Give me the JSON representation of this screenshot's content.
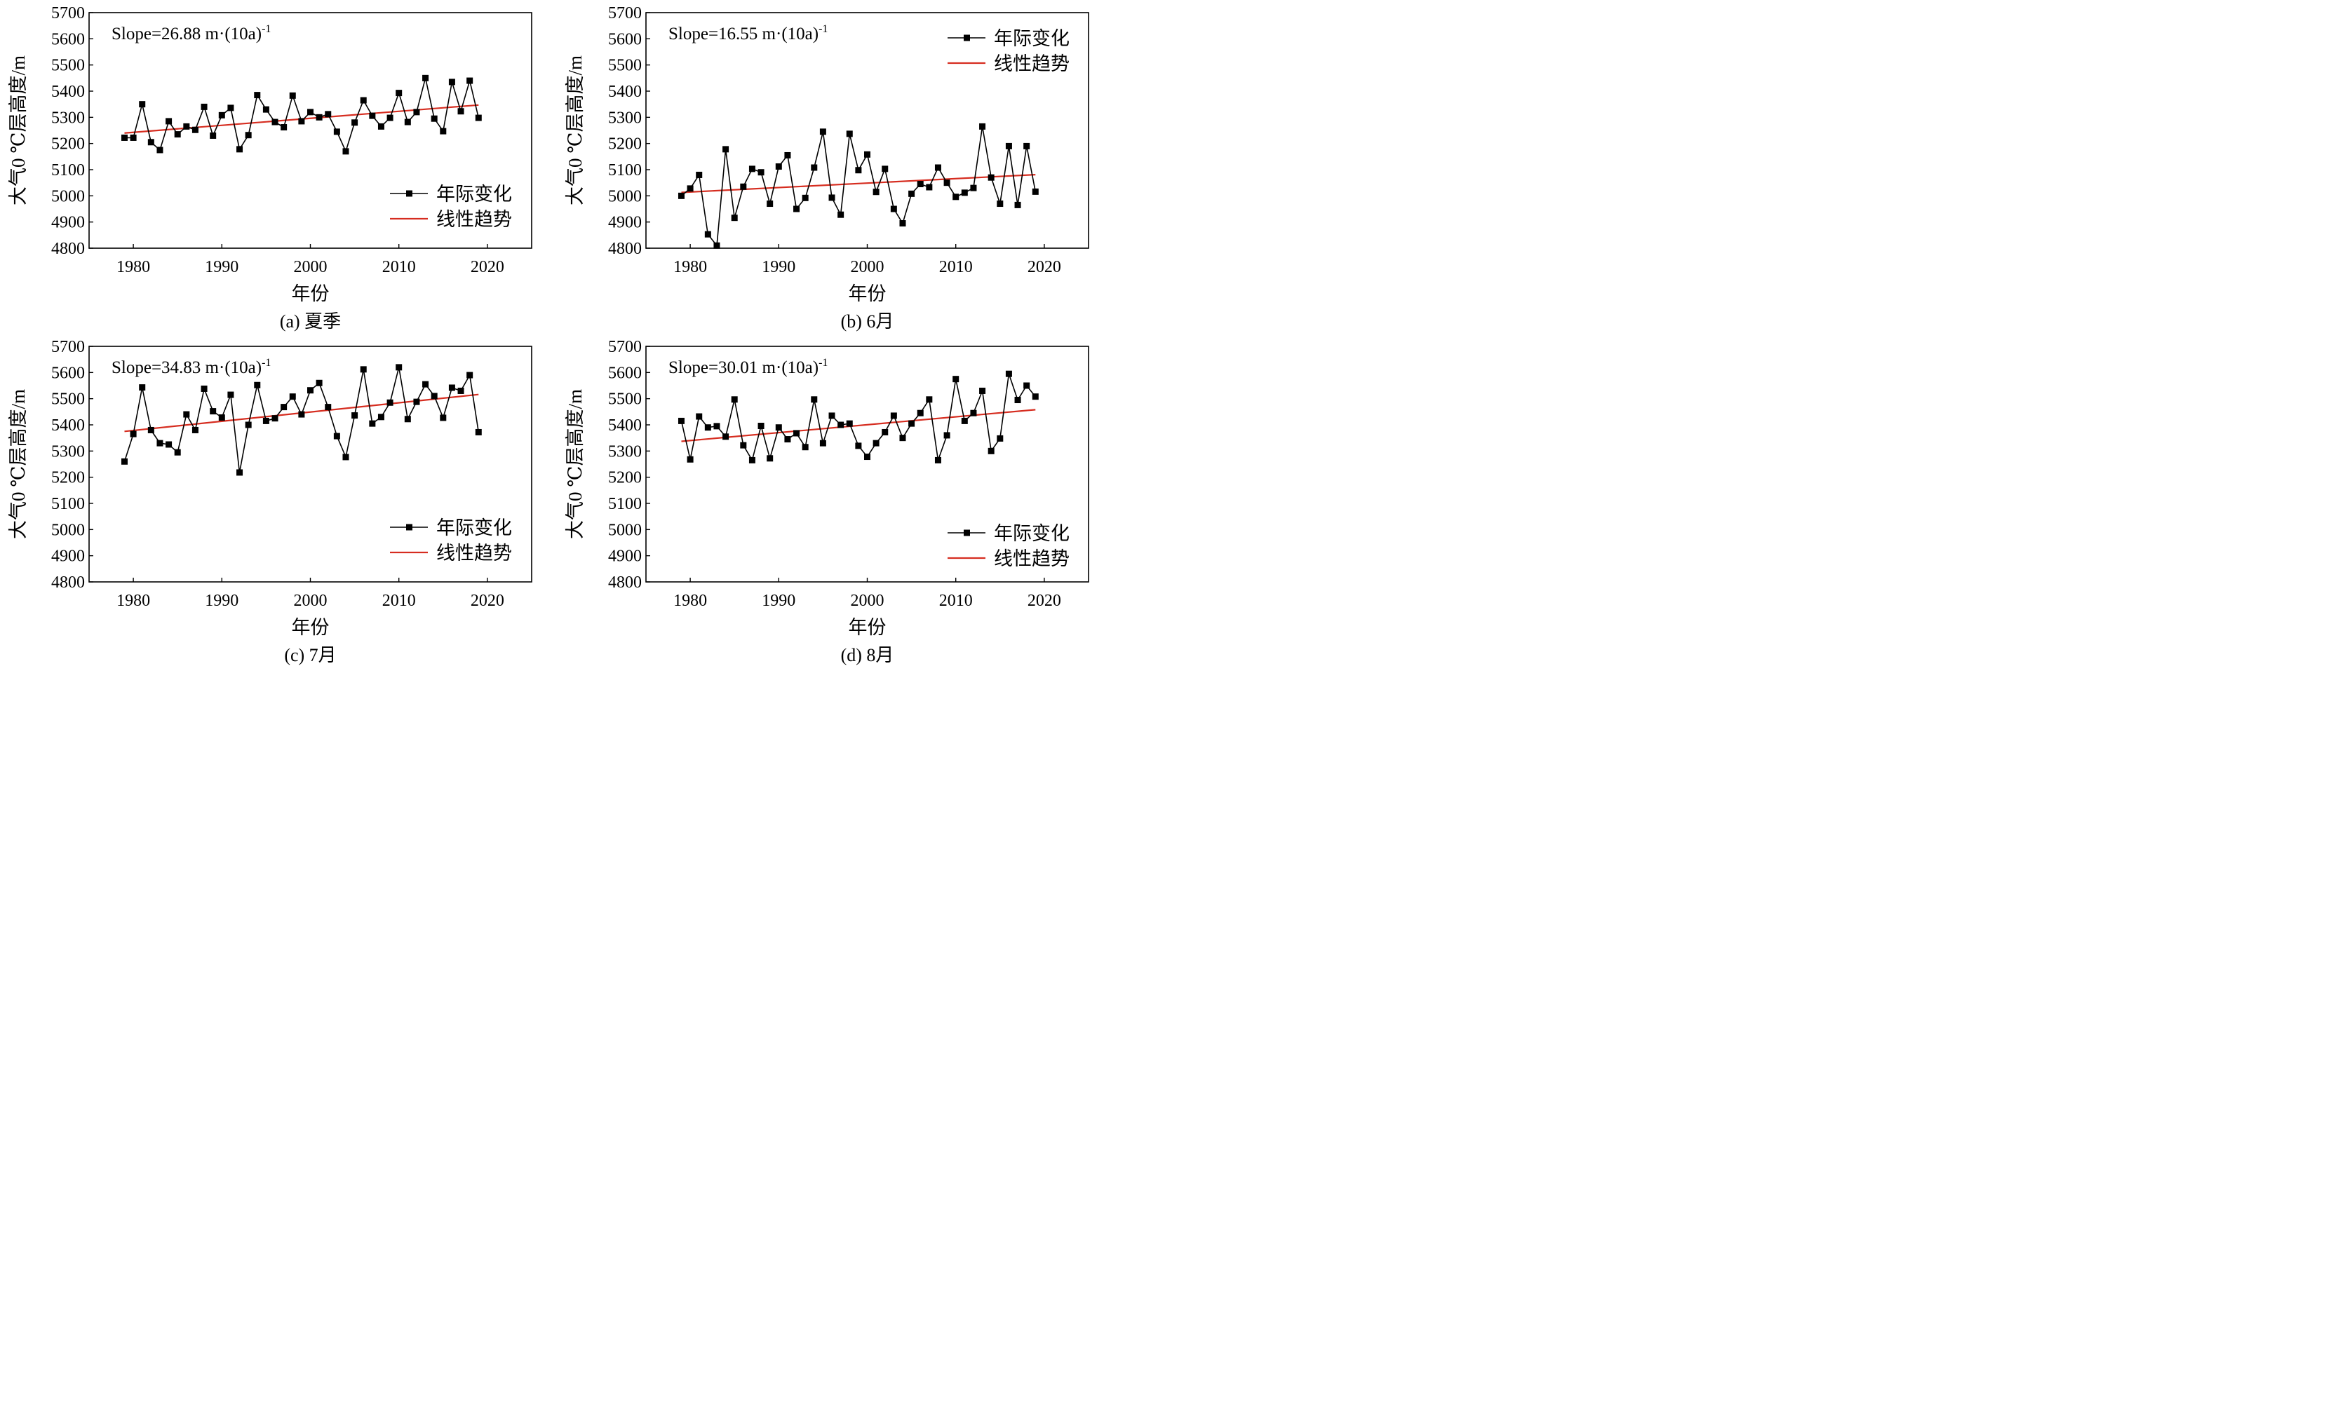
{
  "chart_data": [
    {
      "type": "line",
      "caption": "(a) 夏季",
      "xlabel": "年份",
      "ylabel": "大气0 ℃层高度/m",
      "xlim": [
        1975,
        2025
      ],
      "ylim": [
        4800,
        5700
      ],
      "xticks": [
        1980,
        1990,
        2000,
        2010,
        2020
      ],
      "yticks": [
        4800,
        4900,
        5000,
        5100,
        5200,
        5300,
        5400,
        5500,
        5600,
        5700
      ],
      "annotation": {
        "main": "Slope=26.88 m·(10a)",
        "sup": "-1"
      },
      "legend": {
        "position": "bottom-right",
        "entries": [
          "年际变化",
          "线性趋势"
        ]
      },
      "series": [
        {
          "name": "年际变化",
          "color": "#000000",
          "marker": "square",
          "x": [
            1979,
            1980,
            1981,
            1982,
            1983,
            1984,
            1985,
            1986,
            1987,
            1988,
            1989,
            1990,
            1991,
            1992,
            1993,
            1994,
            1995,
            1996,
            1997,
            1998,
            1999,
            2000,
            2001,
            2002,
            2003,
            2004,
            2005,
            2006,
            2007,
            2008,
            2009,
            2010,
            2011,
            2012,
            2013,
            2014,
            2015,
            2016,
            2017,
            2018,
            2019
          ],
          "y": [
            5222,
            5222,
            5350,
            5205,
            5175,
            5285,
            5235,
            5265,
            5252,
            5340,
            5230,
            5308,
            5336,
            5178,
            5232,
            5385,
            5330,
            5282,
            5262,
            5383,
            5285,
            5320,
            5300,
            5312,
            5245,
            5170,
            5280,
            5365,
            5306,
            5265,
            5298,
            5393,
            5282,
            5320,
            5450,
            5295,
            5247,
            5435,
            5323,
            5440,
            5298
          ]
        },
        {
          "name": "线性趋势",
          "color": "#d62d20",
          "x": [
            1979,
            2019
          ],
          "y": [
            5240,
            5347
          ]
        }
      ]
    },
    {
      "type": "line",
      "caption": "(b) 6月",
      "xlabel": "年份",
      "ylabel": "大气0 ℃层高度/m",
      "xlim": [
        1975,
        2025
      ],
      "ylim": [
        4800,
        5700
      ],
      "xticks": [
        1980,
        1990,
        2000,
        2010,
        2020
      ],
      "yticks": [
        4800,
        4900,
        5000,
        5100,
        5200,
        5300,
        5400,
        5500,
        5600,
        5700
      ],
      "annotation": {
        "main": "Slope=16.55 m·(10a)",
        "sup": "-1"
      },
      "legend": {
        "position": "top-right",
        "entries": [
          "年际变化",
          "线性趋势"
        ]
      },
      "series": [
        {
          "name": "年际变化",
          "color": "#000000",
          "marker": "square",
          "x": [
            1979,
            1980,
            1981,
            1982,
            1983,
            1984,
            1985,
            1986,
            1987,
            1988,
            1989,
            1990,
            1991,
            1992,
            1993,
            1994,
            1995,
            1996,
            1997,
            1998,
            1999,
            2000,
            2001,
            2002,
            2003,
            2004,
            2005,
            2006,
            2007,
            2008,
            2009,
            2010,
            2011,
            2012,
            2013,
            2014,
            2015,
            2016,
            2017,
            2018,
            2019
          ],
          "y": [
            5000,
            5028,
            5080,
            4853,
            4810,
            5178,
            4916,
            5035,
            5103,
            5090,
            4970,
            5112,
            5155,
            4950,
            4992,
            5108,
            5245,
            4993,
            4928,
            5237,
            5098,
            5158,
            5015,
            5103,
            4950,
            4895,
            5008,
            5045,
            5033,
            5108,
            5050,
            4996,
            5012,
            5030,
            5265,
            5070,
            4970,
            5190,
            4965,
            5190,
            5016
          ]
        },
        {
          "name": "线性趋势",
          "color": "#d62d20",
          "x": [
            1979,
            2019
          ],
          "y": [
            5013,
            5081
          ]
        }
      ]
    },
    {
      "type": "line",
      "caption": "(c) 7月",
      "xlabel": "年份",
      "ylabel": "大气0 ℃层高度/m",
      "xlim": [
        1975,
        2025
      ],
      "ylim": [
        4800,
        5700
      ],
      "xticks": [
        1980,
        1990,
        2000,
        2010,
        2020
      ],
      "yticks": [
        4800,
        4900,
        5000,
        5100,
        5200,
        5300,
        5400,
        5500,
        5600,
        5700
      ],
      "annotation": {
        "main": "Slope=34.83 m·(10a)",
        "sup": "-1"
      },
      "legend": {
        "position": "bottom-right",
        "entries": [
          "年际变化",
          "线性趋势"
        ]
      },
      "series": [
        {
          "name": "年际变化",
          "color": "#000000",
          "marker": "square",
          "x": [
            1979,
            1980,
            1981,
            1982,
            1983,
            1984,
            1985,
            1986,
            1987,
            1988,
            1989,
            1990,
            1991,
            1992,
            1993,
            1994,
            1995,
            1996,
            1997,
            1998,
            1999,
            2000,
            2001,
            2002,
            2003,
            2004,
            2005,
            2006,
            2007,
            2008,
            2009,
            2010,
            2011,
            2012,
            2013,
            2014,
            2015,
            2016,
            2017,
            2018,
            2019
          ],
          "y": [
            5260,
            5365,
            5543,
            5380,
            5330,
            5325,
            5295,
            5440,
            5380,
            5538,
            5452,
            5428,
            5515,
            5218,
            5400,
            5552,
            5415,
            5425,
            5468,
            5508,
            5440,
            5532,
            5560,
            5468,
            5357,
            5277,
            5436,
            5612,
            5405,
            5430,
            5485,
            5620,
            5422,
            5488,
            5555,
            5510,
            5427,
            5542,
            5530,
            5590,
            5372
          ]
        },
        {
          "name": "线性趋势",
          "color": "#d62d20",
          "x": [
            1979,
            2019
          ],
          "y": [
            5375,
            5516
          ]
        }
      ]
    },
    {
      "type": "line",
      "caption": "(d) 8月",
      "xlabel": "年份",
      "ylabel": "大气0 ℃层高度/m",
      "xlim": [
        1975,
        2025
      ],
      "ylim": [
        4800,
        5700
      ],
      "xticks": [
        1980,
        1990,
        2000,
        2010,
        2020
      ],
      "yticks": [
        4800,
        4900,
        5000,
        5100,
        5200,
        5300,
        5400,
        5500,
        5600,
        5700
      ],
      "annotation": {
        "main": "Slope=30.01 m·(10a)",
        "sup": "-1"
      },
      "legend": {
        "position": "bottom-right",
        "entries": [
          "年际变化",
          "线性趋势"
        ]
      },
      "series": [
        {
          "name": "年际变化",
          "color": "#000000",
          "marker": "square",
          "x": [
            1979,
            1980,
            1981,
            1982,
            1983,
            1984,
            1985,
            1986,
            1987,
            1988,
            1989,
            1990,
            1991,
            1992,
            1993,
            1994,
            1995,
            1996,
            1997,
            1998,
            1999,
            2000,
            2001,
            2002,
            2003,
            2004,
            2005,
            2006,
            2007,
            2008,
            2009,
            2010,
            2011,
            2012,
            2013,
            2014,
            2015,
            2016,
            2017,
            2018,
            2019
          ],
          "y": [
            5415,
            5268,
            5432,
            5390,
            5395,
            5355,
            5497,
            5322,
            5265,
            5396,
            5272,
            5390,
            5345,
            5368,
            5315,
            5497,
            5330,
            5435,
            5400,
            5405,
            5320,
            5278,
            5330,
            5372,
            5435,
            5350,
            5405,
            5445,
            5497,
            5265,
            5360,
            5575,
            5415,
            5445,
            5530,
            5300,
            5348,
            5595,
            5495,
            5550,
            5508
          ]
        },
        {
          "name": "线性趋势",
          "color": "#d62d20",
          "x": [
            1979,
            2019
          ],
          "y": [
            5337,
            5458
          ]
        }
      ]
    }
  ]
}
